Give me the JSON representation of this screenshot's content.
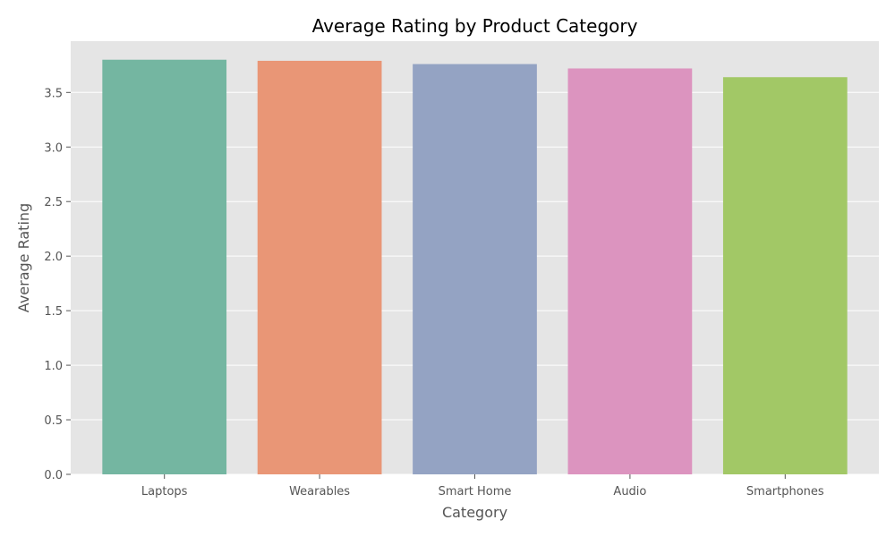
{
  "chart_data": {
    "type": "bar",
    "title": "Average Rating by Product Category",
    "xlabel": "Category",
    "ylabel": "Average Rating",
    "categories": [
      "Laptops",
      "Wearables",
      "Smart Home",
      "Audio",
      "Smartphones"
    ],
    "values": [
      3.8,
      3.79,
      3.76,
      3.72,
      3.64
    ],
    "colors": [
      "#74b6a1",
      "#e99676",
      "#94a3c3",
      "#dc94bf",
      "#a2c866"
    ],
    "ylim": [
      0,
      3.97
    ],
    "yticks": [
      0.0,
      0.5,
      1.0,
      1.5,
      2.0,
      2.5,
      3.0,
      3.5
    ],
    "ytick_labels": [
      "0.0",
      "0.5",
      "1.0",
      "1.5",
      "2.0",
      "2.5",
      "3.0",
      "3.5"
    ],
    "grid": true,
    "background": "#e5e5e5",
    "grid_color": "#ffffff"
  }
}
